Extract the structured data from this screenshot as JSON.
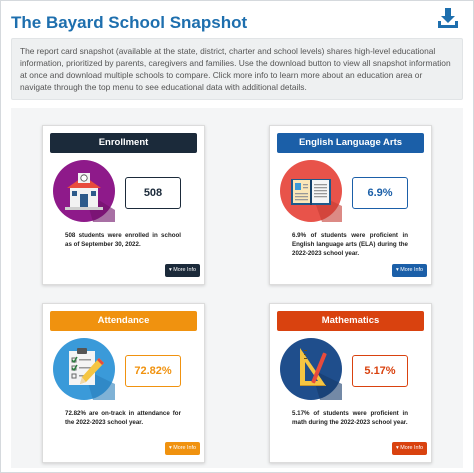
{
  "header": {
    "title": "The Bayard School Snapshot",
    "download_icon": "download-icon",
    "intro_text": "The report card snapshot (available at the state, district, charter and school levels) shares high-level educational information, prioritized by parents, caregivers and families. Use the download button to view all snapshot information at once and download multiple schools to compare. Click more info to learn more about an education area or navigate through the top menu to see educational data with additional details."
  },
  "cards": {
    "enrollment": {
      "title": "Enrollment",
      "value": "508",
      "description": "508 students were enrolled in school as of September 30, 2022.",
      "more_label": "▾ More Info",
      "icon": "school-building-icon",
      "color": "#1b2a3a",
      "icon_bg": "#8e1a8a"
    },
    "ela": {
      "title": "English Language Arts",
      "value": "6.9%",
      "description": "6.9% of students were proficient in English language arts (ELA) during the 2022-2023 school year.",
      "more_label": "▾ More Info",
      "icon": "open-book-icon",
      "color": "#1b5fa8",
      "icon_bg": "#e8534a"
    },
    "attendance": {
      "title": "Attendance",
      "value": "72.82%",
      "description": "72.82% are on-track in attendance for the 2022-2023 school year.",
      "more_label": "▾ More Info",
      "icon": "checklist-pencil-icon",
      "color": "#f0920f",
      "icon_bg": "#3a9ad9"
    },
    "math": {
      "title": "Mathematics",
      "value": "5.17%",
      "description": "5.17% of students were proficient in math during the 2022-2023 school year.",
      "more_label": "▾ More Info",
      "icon": "ruler-triangle-icon",
      "color": "#d9420f",
      "icon_bg": "#1f4e8c"
    }
  }
}
